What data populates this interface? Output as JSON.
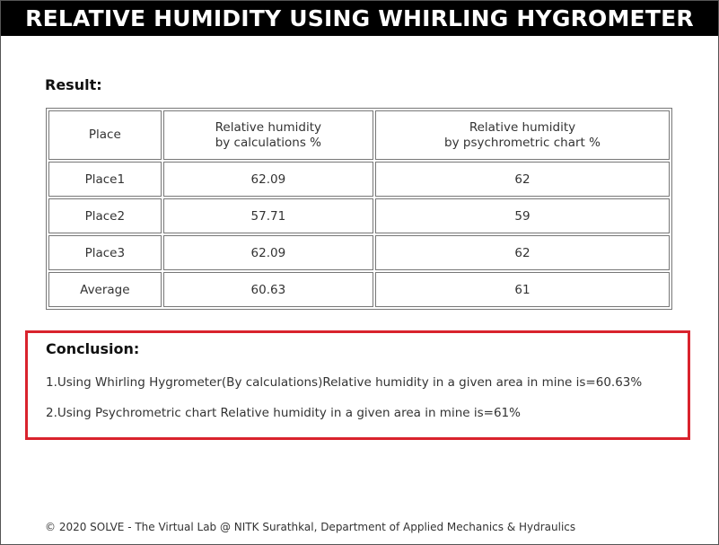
{
  "header": {
    "title": "RELATIVE HUMIDITY USING WHIRLING HYGROMETER"
  },
  "result": {
    "heading": "Result:",
    "columns": [
      "Place",
      "Relative humidity\nby calculations %",
      "Relative humidity\nby psychrometric chart %"
    ],
    "rows": [
      {
        "place": "Place1",
        "calc": "62.09",
        "chart": "62"
      },
      {
        "place": "Place2",
        "calc": "57.71",
        "chart": "59"
      },
      {
        "place": "Place3",
        "calc": "62.09",
        "chart": "62"
      },
      {
        "place": "Average",
        "calc": "60.63",
        "chart": "61"
      }
    ]
  },
  "conclusion": {
    "heading": "Conclusion:",
    "lines": [
      "1.Using Whirling Hygrometer(By calculations)Relative humidity in a given area in mine is=60.63%",
      "2.Using Psychrometric chart Relative humidity in a given area in mine is=61%"
    ]
  },
  "footer": {
    "text": "© 2020 SOLVE - The Virtual Lab @ NITK Surathkal, Department of Applied Mechanics & Hydraulics"
  },
  "colors": {
    "title_bar": "#000000",
    "conclusion_border": "#d9232d"
  }
}
